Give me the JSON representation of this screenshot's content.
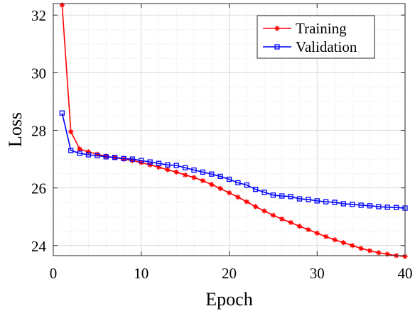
{
  "chart_data": {
    "type": "line",
    "title": "",
    "xlabel": "Epoch",
    "ylabel": "Loss",
    "xlim": [
      0,
      40
    ],
    "ylim": [
      23.65,
      32.4
    ],
    "xticks": [
      0,
      10,
      20,
      30,
      40
    ],
    "yticks": [
      24,
      26,
      28,
      30,
      32
    ],
    "grid": true,
    "minor_grid": true,
    "legend_position": "top-right",
    "x": [
      1,
      2,
      3,
      4,
      5,
      6,
      7,
      8,
      9,
      10,
      11,
      12,
      13,
      14,
      15,
      16,
      17,
      18,
      19,
      20,
      21,
      22,
      23,
      24,
      25,
      26,
      27,
      28,
      29,
      30,
      31,
      32,
      33,
      34,
      35,
      36,
      37,
      38,
      39,
      40
    ],
    "series": [
      {
        "name": "Training",
        "color": "#ff0000",
        "marker": "asterisk",
        "values": [
          32.35,
          27.95,
          27.35,
          27.25,
          27.17,
          27.1,
          27.05,
          27.0,
          26.95,
          26.88,
          26.8,
          26.72,
          26.63,
          26.55,
          26.45,
          26.36,
          26.25,
          26.12,
          25.98,
          25.83,
          25.68,
          25.52,
          25.35,
          25.2,
          25.05,
          24.92,
          24.8,
          24.67,
          24.55,
          24.43,
          24.31,
          24.2,
          24.1,
          24.0,
          23.9,
          23.82,
          23.75,
          23.7,
          23.65,
          23.62
        ]
      },
      {
        "name": "Validation",
        "color": "#0000ff",
        "marker": "square",
        "values": [
          28.6,
          27.3,
          27.2,
          27.15,
          27.12,
          27.08,
          27.06,
          27.02,
          27.0,
          26.95,
          26.9,
          26.85,
          26.8,
          26.78,
          26.7,
          26.62,
          26.55,
          26.48,
          26.4,
          26.3,
          26.18,
          26.1,
          25.95,
          25.85,
          25.75,
          25.72,
          25.7,
          25.62,
          25.6,
          25.55,
          25.52,
          25.5,
          25.45,
          25.43,
          25.4,
          25.38,
          25.35,
          25.33,
          25.32,
          25.3
        ]
      }
    ]
  }
}
